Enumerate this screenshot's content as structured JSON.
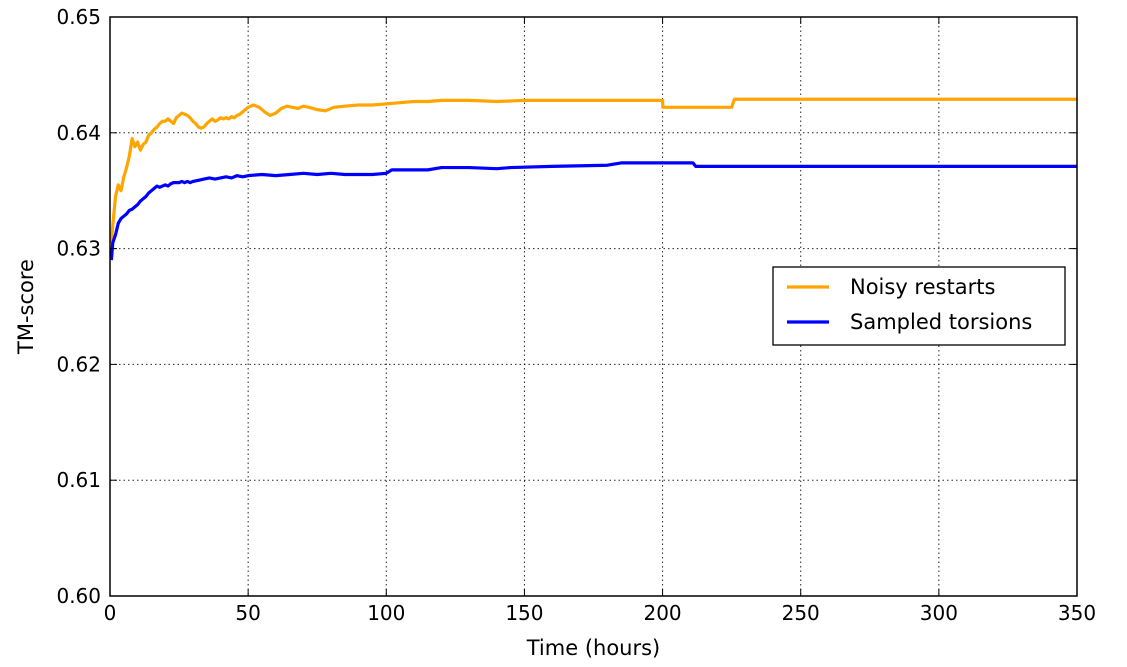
{
  "chart_data": {
    "type": "line",
    "title": "",
    "xlabel": "Time (hours)",
    "ylabel": "TM-score",
    "xlim": [
      0,
      350
    ],
    "ylim": [
      0.6,
      0.65
    ],
    "xticks": [
      0,
      50,
      100,
      150,
      200,
      250,
      300,
      350
    ],
    "yticks": [
      0.6,
      0.61,
      0.62,
      0.63,
      0.64,
      0.65
    ],
    "xtick_labels": [
      "0",
      "50",
      "100",
      "150",
      "200",
      "250",
      "300",
      "350"
    ],
    "ytick_labels": [
      "0.60",
      "0.61",
      "0.62",
      "0.63",
      "0.64",
      "0.65"
    ],
    "grid": true,
    "legend_position": "center-right",
    "series": [
      {
        "name": "Noisy restarts",
        "color": "#ffa500",
        "x": [
          0.5,
          1,
          2,
          3,
          4,
          5,
          6,
          7,
          8,
          9,
          10,
          11,
          12,
          13,
          14,
          15,
          16,
          17,
          18,
          19,
          20,
          21,
          22,
          23,
          24,
          25,
          26,
          27,
          28,
          29,
          30,
          31,
          32,
          33,
          34,
          35,
          36,
          37,
          38,
          39,
          40,
          41,
          42,
          43,
          44,
          45,
          46,
          47,
          48,
          49,
          50,
          52,
          54,
          56,
          58,
          60,
          62,
          64,
          66,
          68,
          70,
          72,
          75,
          78,
          81,
          85,
          90,
          95,
          100,
          105,
          110,
          115,
          120,
          130,
          140,
          150,
          160,
          170,
          180,
          190,
          200,
          200.1,
          210,
          220,
          225,
          226,
          230,
          240,
          260,
          300,
          350
        ],
        "y": [
          0.6305,
          0.632,
          0.6345,
          0.6355,
          0.635,
          0.6362,
          0.637,
          0.638,
          0.6395,
          0.6388,
          0.6392,
          0.6385,
          0.639,
          0.6392,
          0.6398,
          0.64,
          0.6403,
          0.6405,
          0.6408,
          0.641,
          0.641,
          0.6412,
          0.641,
          0.6408,
          0.6413,
          0.6415,
          0.6417,
          0.6416,
          0.6415,
          0.6413,
          0.641,
          0.6408,
          0.6405,
          0.6404,
          0.6405,
          0.6408,
          0.641,
          0.6412,
          0.641,
          0.6411,
          0.6413,
          0.6412,
          0.6413,
          0.6412,
          0.6414,
          0.6413,
          0.6415,
          0.6416,
          0.6418,
          0.642,
          0.6422,
          0.6424,
          0.6422,
          0.6418,
          0.6415,
          0.6417,
          0.6421,
          0.6423,
          0.6422,
          0.6421,
          0.6423,
          0.6422,
          0.642,
          0.6419,
          0.6422,
          0.6423,
          0.6424,
          0.6424,
          0.6425,
          0.6426,
          0.6427,
          0.6427,
          0.6428,
          0.6428,
          0.6427,
          0.6428,
          0.6428,
          0.6428,
          0.6428,
          0.6428,
          0.6428,
          0.6422,
          0.6422,
          0.6422,
          0.6422,
          0.6429,
          0.6429,
          0.6429,
          0.6429,
          0.6429,
          0.6429
        ]
      },
      {
        "name": "Sampled torsions",
        "color": "#0000ff",
        "x": [
          0.5,
          1,
          2,
          3,
          4,
          5,
          6,
          7,
          8,
          9,
          10,
          11,
          12,
          13,
          14,
          15,
          16,
          17,
          18,
          19,
          20,
          21,
          22,
          23,
          24,
          25,
          26,
          27,
          28,
          29,
          30,
          32,
          34,
          36,
          38,
          40,
          42,
          44,
          46,
          48,
          50,
          55,
          60,
          65,
          70,
          75,
          80,
          85,
          90,
          95,
          100,
          102,
          105,
          110,
          115,
          120,
          122,
          130,
          140,
          145,
          160,
          180,
          185,
          200,
          211,
          212,
          250,
          300,
          350
        ],
        "y": [
          0.629,
          0.6305,
          0.6312,
          0.6322,
          0.6326,
          0.6328,
          0.633,
          0.6333,
          0.6334,
          0.6336,
          0.6338,
          0.6341,
          0.6343,
          0.6345,
          0.6348,
          0.635,
          0.6352,
          0.6354,
          0.6353,
          0.6354,
          0.6355,
          0.6354,
          0.6356,
          0.6357,
          0.6357,
          0.6357,
          0.6358,
          0.6357,
          0.6358,
          0.6357,
          0.6358,
          0.6359,
          0.636,
          0.6361,
          0.636,
          0.6361,
          0.6362,
          0.6361,
          0.6363,
          0.6362,
          0.6363,
          0.6364,
          0.6363,
          0.6364,
          0.6365,
          0.6364,
          0.6365,
          0.6364,
          0.6364,
          0.6364,
          0.6365,
          0.6368,
          0.6368,
          0.6368,
          0.6368,
          0.637,
          0.637,
          0.637,
          0.6369,
          0.637,
          0.6371,
          0.6372,
          0.6374,
          0.6374,
          0.6374,
          0.6371,
          0.6371,
          0.6371,
          0.6371
        ]
      }
    ]
  }
}
